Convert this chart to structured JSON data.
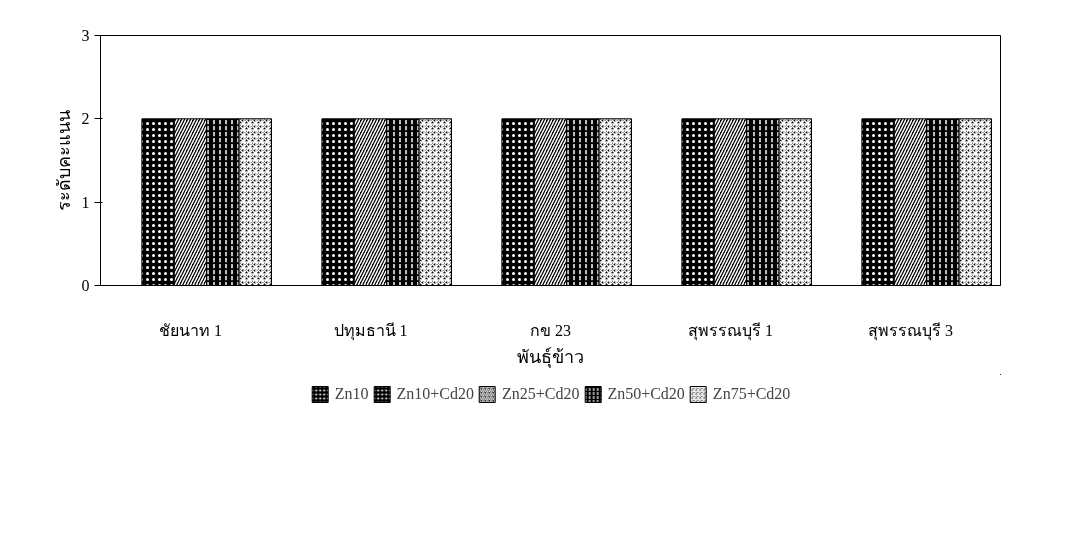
{
  "chart_data": {
    "type": "bar",
    "xlabel": "พันธุ์ข้าว",
    "ylabel": "ระดับคะแนน",
    "categories": [
      "ชัยนาท 1",
      "ปทุมธานี 1",
      "กข 23",
      "สุพรรณบุรี 1",
      "สุพรรณบุรี 3"
    ],
    "series": [
      {
        "name": "Zn10",
        "color": "#000000",
        "values": [
          0,
          0,
          0,
          0,
          0
        ]
      },
      {
        "name": "Zn10+Cd20",
        "color": "#000000",
        "values": [
          2,
          2,
          2,
          2,
          2
        ]
      },
      {
        "name": "Zn25+Cd20",
        "color": "#000000",
        "values": [
          2,
          2,
          2,
          2,
          2
        ]
      },
      {
        "name": "Zn50+Cd20",
        "color": "#000000",
        "values": [
          2,
          2,
          2,
          2,
          2
        ]
      },
      {
        "name": "Zn75+Cd20",
        "color": "#000000",
        "values": [
          2,
          2,
          2,
          2,
          2
        ]
      }
    ],
    "ylim": [
      0,
      3
    ],
    "yticks": [
      0,
      1,
      2,
      3
    ],
    "grid": false,
    "legend": "bottom"
  }
}
